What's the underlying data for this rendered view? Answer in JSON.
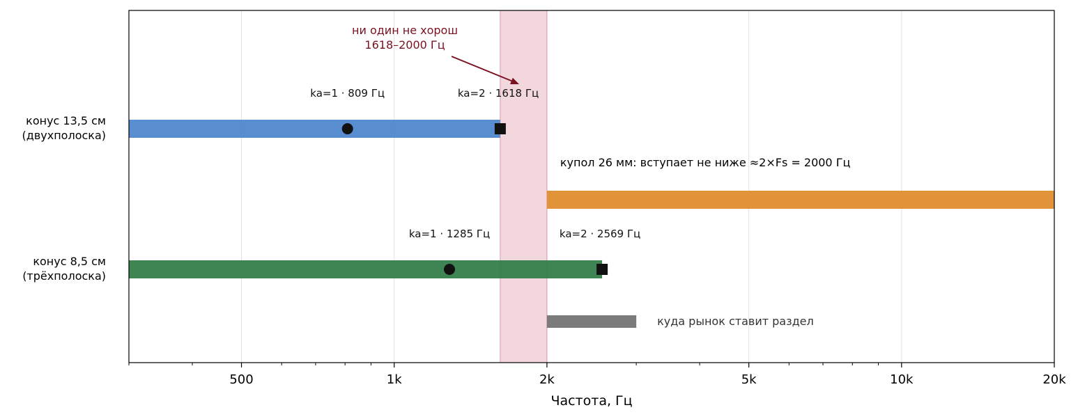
{
  "chart_data": {
    "type": "range-bar",
    "xlabel": "Частота, Гц",
    "x_scale": "log",
    "xlim": [
      300,
      20000
    ],
    "x_ticks": [
      {
        "value": 500,
        "label": "500"
      },
      {
        "value": 1000,
        "label": "1k"
      },
      {
        "value": 2000,
        "label": "2k"
      },
      {
        "value": 5000,
        "label": "5k"
      },
      {
        "value": 10000,
        "label": "10k"
      },
      {
        "value": 20000,
        "label": "20k"
      }
    ],
    "minor_ticks": [
      300,
      400,
      600,
      700,
      800,
      900,
      3000,
      4000,
      6000,
      7000,
      8000,
      9000
    ],
    "grid": "vertical at major ticks",
    "y_labels": [
      {
        "row": 0,
        "text": "конус 13,5 см\n(двухполоска)"
      },
      {
        "row": 2,
        "text": "конус 8,5 см\n(трёхполоска)"
      }
    ],
    "bars": [
      {
        "row": 0,
        "from": 300,
        "to": 1618,
        "color": "#4a84cb"
      },
      {
        "row": 1,
        "from": 2000,
        "to": 20000,
        "color": "#e08a28"
      },
      {
        "row": 2,
        "from": 300,
        "to": 2569,
        "color": "#2e7b44"
      },
      {
        "row": 3,
        "from": 2000,
        "to": 3000,
        "color": "#707070"
      }
    ],
    "markers": [
      {
        "row": 0,
        "x": 809,
        "shape": "circle",
        "label": "ka=1 · 809 Гц"
      },
      {
        "row": 0,
        "x": 1618,
        "shape": "square",
        "label": "ka=2 · 1618 Гц"
      },
      {
        "row": 2,
        "x": 1285,
        "shape": "circle",
        "label": "ka=1 · 1285 Гц"
      },
      {
        "row": 2,
        "x": 2569,
        "shape": "square",
        "label": "ka=2 · 2569 Гц"
      }
    ],
    "shaded_region": {
      "from": 1618,
      "to": 2000,
      "color": "#e8bcc3"
    },
    "annotations": {
      "no_good": "ни один не хорош\n1618–2000 Гц",
      "dome": "купол 26 мм: вступает не ниже ≈2×Fs = 2000 Гц",
      "market": "куда рынок ставит раздел"
    },
    "colors": {
      "annotation_red": "#7a1020",
      "marker": "#111111"
    }
  }
}
